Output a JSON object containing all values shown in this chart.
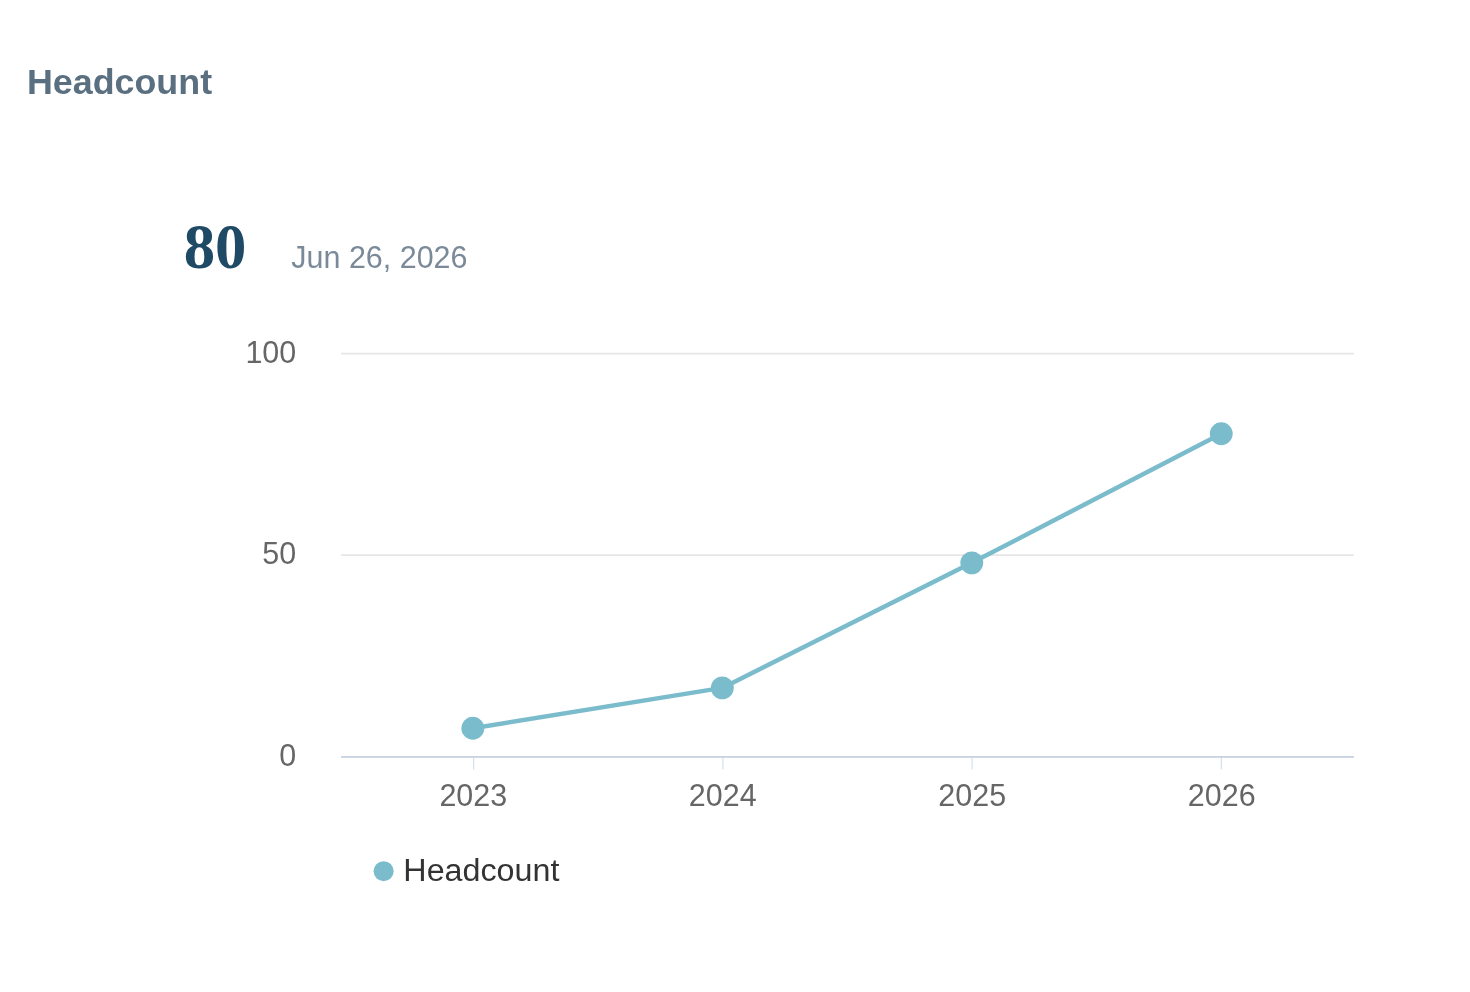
{
  "chart_data": {
    "type": "line",
    "title": "Headcount",
    "annotations": [
      "80",
      "Jun 26, 2026"
    ],
    "categories": [
      "2023",
      "2024",
      "2025",
      "2026"
    ],
    "series": [
      {
        "name": "Headcount",
        "color": "#7bbccc",
        "values": [
          7,
          17,
          48,
          80
        ]
      }
    ],
    "ylim": [
      0,
      100
    ],
    "yticks": [
      0,
      50,
      100
    ],
    "grid": "y",
    "legend": "bottom",
    "marker": "circle",
    "line_style": "solid"
  }
}
